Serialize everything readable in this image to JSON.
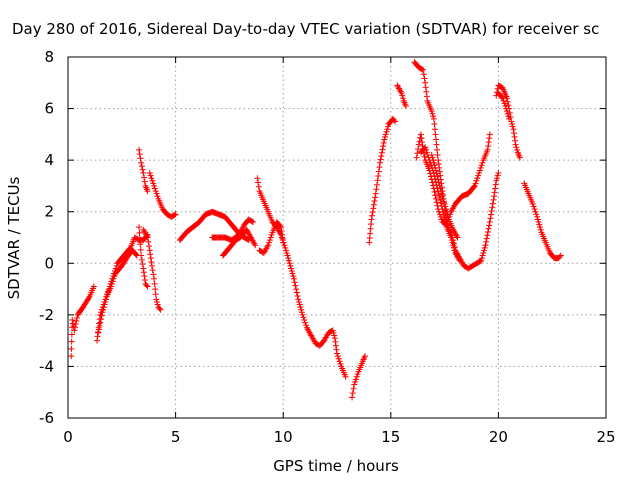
{
  "chart_data": {
    "type": "scatter",
    "title": "Day 280 of 2016, Sidereal Day-to-day VTEC variation (SDTVAR) for receiver sc",
    "xlabel": "GPS time / hours",
    "ylabel": "SDTVAR / TECUs",
    "xlim": [
      0,
      25
    ],
    "ylim": [
      -6,
      8
    ],
    "xticks": [
      0,
      5,
      10,
      15,
      20,
      25
    ],
    "yticks": [
      -6,
      -4,
      -2,
      0,
      2,
      4,
      6,
      8
    ],
    "grid": true,
    "marker": "+",
    "color": "#ff0000",
    "segments": [
      [
        [
          0.15,
          -3.6
        ],
        [
          0.2,
          -2.2
        ],
        [
          0.3,
          -2.6
        ],
        [
          0.45,
          -2.0
        ],
        [
          0.7,
          -1.7
        ],
        [
          1.0,
          -1.3
        ],
        [
          1.2,
          -0.9
        ]
      ],
      [
        [
          1.35,
          -3.0
        ],
        [
          1.5,
          -2.0
        ],
        [
          1.7,
          -1.5
        ],
        [
          1.9,
          -1.0
        ],
        [
          2.1,
          -0.5
        ],
        [
          2.3,
          0.0
        ],
        [
          2.6,
          0.3
        ],
        [
          2.9,
          0.6
        ],
        [
          3.1,
          1.0
        ],
        [
          3.3,
          0.9
        ],
        [
          3.5,
          0.9
        ],
        [
          3.7,
          1.1
        ]
      ],
      [
        [
          1.4,
          -2.7
        ],
        [
          1.6,
          -1.9
        ],
        [
          1.8,
          -1.3
        ],
        [
          2.0,
          -0.9
        ],
        [
          2.2,
          -0.4
        ],
        [
          2.5,
          -0.1
        ],
        [
          2.8,
          0.3
        ],
        [
          3.0,
          0.5
        ],
        [
          3.2,
          0.3
        ]
      ],
      [
        [
          3.3,
          4.4
        ],
        [
          3.4,
          3.9
        ],
        [
          3.5,
          3.5
        ],
        [
          3.6,
          3.0
        ],
        [
          3.7,
          2.8
        ]
      ],
      [
        [
          3.3,
          1.4
        ],
        [
          3.4,
          0.3
        ],
        [
          3.5,
          -0.2
        ],
        [
          3.6,
          -0.8
        ],
        [
          3.7,
          -0.9
        ]
      ],
      [
        [
          3.5,
          1.3
        ],
        [
          3.7,
          1.0
        ],
        [
          3.8,
          0.5
        ],
        [
          3.9,
          -0.1
        ],
        [
          4.0,
          -0.6
        ],
        [
          4.1,
          -1.4
        ],
        [
          4.2,
          -1.7
        ],
        [
          4.3,
          -1.8
        ]
      ],
      [
        [
          3.8,
          3.5
        ],
        [
          4.0,
          3.0
        ],
        [
          4.2,
          2.5
        ],
        [
          4.4,
          2.1
        ],
        [
          4.6,
          1.9
        ],
        [
          4.8,
          1.8
        ],
        [
          5.0,
          1.9
        ]
      ],
      [
        [
          5.2,
          0.9
        ],
        [
          5.5,
          1.2
        ],
        [
          5.8,
          1.4
        ],
        [
          6.1,
          1.6
        ],
        [
          6.4,
          1.9
        ],
        [
          6.7,
          2.0
        ],
        [
          7.0,
          1.9
        ],
        [
          7.3,
          1.8
        ],
        [
          7.6,
          1.5
        ],
        [
          7.8,
          1.3
        ],
        [
          8.0,
          1.1
        ],
        [
          8.2,
          1.0
        ],
        [
          8.4,
          0.9
        ]
      ],
      [
        [
          6.7,
          1.0
        ],
        [
          7.0,
          1.0
        ],
        [
          7.3,
          1.0
        ],
        [
          7.6,
          0.9
        ],
        [
          7.8,
          1.0
        ],
        [
          8.0,
          1.2
        ],
        [
          8.2,
          1.5
        ],
        [
          8.4,
          1.7
        ],
        [
          8.6,
          1.6
        ]
      ],
      [
        [
          7.2,
          0.3
        ],
        [
          7.5,
          0.6
        ],
        [
          7.8,
          0.9
        ],
        [
          8.0,
          1.0
        ],
        [
          8.3,
          1.3
        ],
        [
          8.5,
          1.0
        ],
        [
          8.7,
          0.7
        ]
      ],
      [
        [
          8.8,
          3.3
        ],
        [
          8.9,
          2.8
        ],
        [
          9.1,
          2.4
        ],
        [
          9.3,
          2.0
        ],
        [
          9.5,
          1.6
        ],
        [
          9.7,
          1.4
        ],
        [
          9.9,
          1.1
        ],
        [
          10.1,
          0.6
        ],
        [
          10.3,
          0.0
        ],
        [
          10.5,
          -0.6
        ],
        [
          10.7,
          -1.4
        ],
        [
          10.9,
          -2.0
        ],
        [
          11.1,
          -2.5
        ],
        [
          11.3,
          -2.8
        ],
        [
          11.5,
          -3.1
        ],
        [
          11.7,
          -3.2
        ],
        [
          11.9,
          -3.0
        ],
        [
          12.1,
          -2.7
        ],
        [
          12.3,
          -2.6
        ],
        [
          12.4,
          -2.9
        ],
        [
          12.5,
          -3.5
        ],
        [
          12.7,
          -4.0
        ],
        [
          12.9,
          -4.4
        ]
      ],
      [
        [
          8.9,
          0.5
        ],
        [
          9.1,
          0.4
        ],
        [
          9.3,
          0.7
        ],
        [
          9.5,
          1.2
        ],
        [
          9.7,
          1.6
        ],
        [
          9.9,
          1.4
        ],
        [
          10.0,
          0.8
        ]
      ],
      [
        [
          13.2,
          -5.2
        ],
        [
          13.3,
          -4.7
        ],
        [
          13.5,
          -4.2
        ],
        [
          13.7,
          -3.8
        ],
        [
          13.8,
          -3.6
        ]
      ],
      [
        [
          14.0,
          0.8
        ],
        [
          14.1,
          1.7
        ],
        [
          14.3,
          2.7
        ],
        [
          14.5,
          3.9
        ],
        [
          14.7,
          4.8
        ],
        [
          14.9,
          5.4
        ],
        [
          15.1,
          5.6
        ],
        [
          15.2,
          5.5
        ]
      ],
      [
        [
          15.3,
          6.9
        ],
        [
          15.5,
          6.6
        ],
        [
          15.6,
          6.3
        ],
        [
          15.7,
          6.1
        ]
      ],
      [
        [
          16.1,
          7.8
        ],
        [
          16.3,
          7.6
        ],
        [
          16.5,
          7.5
        ],
        [
          16.6,
          7.0
        ],
        [
          16.7,
          6.3
        ],
        [
          16.9,
          5.9
        ],
        [
          17.0,
          5.6
        ],
        [
          17.1,
          4.8
        ],
        [
          17.2,
          4.0
        ],
        [
          17.3,
          3.4
        ],
        [
          17.4,
          2.8
        ],
        [
          17.5,
          2.2
        ],
        [
          17.6,
          1.6
        ],
        [
          17.7,
          1.3
        ],
        [
          17.8,
          1.2
        ],
        [
          17.9,
          0.9
        ],
        [
          18.0,
          0.5
        ],
        [
          18.2,
          0.2
        ],
        [
          18.4,
          -0.1
        ],
        [
          18.6,
          -0.2
        ],
        [
          18.8,
          -0.1
        ],
        [
          19.0,
          0.0
        ],
        [
          19.2,
          0.1
        ],
        [
          19.4,
          0.7
        ],
        [
          19.6,
          1.6
        ],
        [
          19.8,
          2.6
        ],
        [
          19.9,
          3.2
        ],
        [
          20.0,
          3.5
        ]
      ],
      [
        [
          16.2,
          4.1
        ],
        [
          16.3,
          4.6
        ],
        [
          16.4,
          5.0
        ],
        [
          16.5,
          4.4
        ],
        [
          16.6,
          4.0
        ],
        [
          16.8,
          3.6
        ],
        [
          17.0,
          2.9
        ],
        [
          17.2,
          2.1
        ],
        [
          17.4,
          1.6
        ],
        [
          17.6,
          1.5
        ],
        [
          17.8,
          2.0
        ],
        [
          18.0,
          2.3
        ],
        [
          18.3,
          2.6
        ],
        [
          18.6,
          2.7
        ],
        [
          18.9,
          3.0
        ],
        [
          19.1,
          3.5
        ],
        [
          19.3,
          4.0
        ],
        [
          19.5,
          4.4
        ],
        [
          19.6,
          5.0
        ]
      ],
      [
        [
          16.4,
          4.3
        ],
        [
          16.6,
          4.5
        ],
        [
          16.8,
          4.0
        ],
        [
          17.0,
          3.5
        ],
        [
          17.2,
          2.8
        ],
        [
          17.4,
          2.1
        ],
        [
          17.6,
          1.4
        ],
        [
          17.8,
          1.0
        ],
        [
          18.0,
          0.4
        ],
        [
          18.2,
          0.1
        ]
      ],
      [
        [
          16.9,
          4.2
        ],
        [
          17.1,
          3.6
        ],
        [
          17.3,
          2.9
        ],
        [
          17.5,
          2.3
        ],
        [
          17.7,
          1.7
        ],
        [
          17.9,
          1.3
        ],
        [
          18.1,
          1.0
        ]
      ],
      [
        [
          19.9,
          6.5
        ],
        [
          20.0,
          6.9
        ],
        [
          20.2,
          6.8
        ],
        [
          20.3,
          6.6
        ],
        [
          20.4,
          6.4
        ],
        [
          20.5,
          6.0
        ],
        [
          20.6,
          5.5
        ],
        [
          20.7,
          5.2
        ],
        [
          20.8,
          4.6
        ],
        [
          20.9,
          4.3
        ],
        [
          21.0,
          4.1
        ]
      ],
      [
        [
          20.0,
          6.6
        ],
        [
          20.2,
          6.4
        ],
        [
          20.4,
          5.9
        ],
        [
          20.5,
          5.6
        ]
      ],
      [
        [
          21.2,
          3.1
        ],
        [
          21.4,
          2.7
        ],
        [
          21.6,
          2.3
        ],
        [
          21.8,
          1.8
        ],
        [
          22.0,
          1.2
        ],
        [
          22.2,
          0.8
        ],
        [
          22.4,
          0.4
        ],
        [
          22.6,
          0.2
        ],
        [
          22.8,
          0.2
        ],
        [
          22.9,
          0.3
        ]
      ]
    ]
  }
}
